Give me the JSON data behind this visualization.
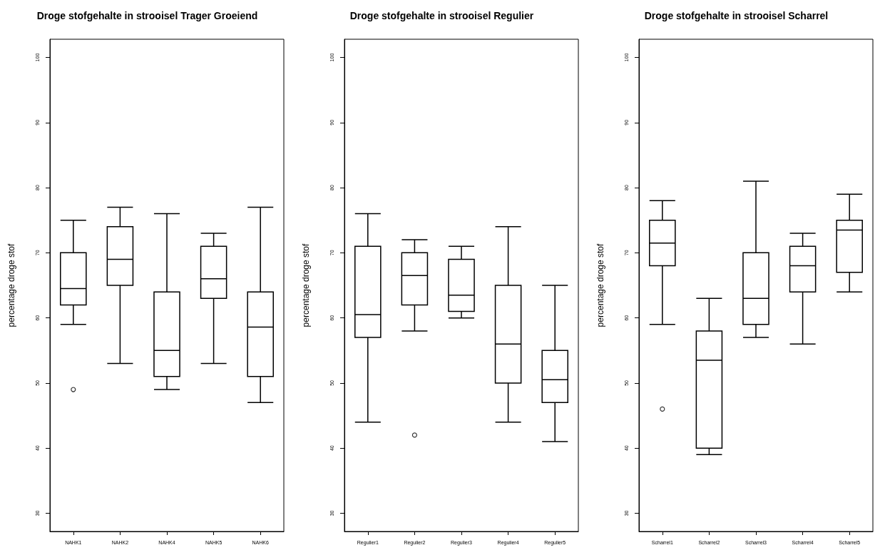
{
  "chart_data": [
    {
      "type": "box",
      "title": "Droge stofgehalte in strooisel Trager Groeiend",
      "ylabel": "percentage droge stof",
      "categories": [
        "NAHK1",
        "NAHK2",
        "NAHK4",
        "NAHK5",
        "NAHK6"
      ],
      "boxes": [
        {
          "low": 59,
          "q1": 62,
          "median": 64.5,
          "q3": 70,
          "high": 75,
          "outliers": [
            49
          ]
        },
        {
          "low": 53,
          "q1": 65,
          "median": 69,
          "q3": 74,
          "high": 77
        },
        {
          "low": 49,
          "q1": 51,
          "median": 55,
          "q3": 64,
          "high": 76
        },
        {
          "low": 53,
          "q1": 63,
          "median": 66,
          "q3": 71,
          "high": 73
        },
        {
          "low": 47,
          "q1": 51,
          "median": 58.6,
          "q3": 64,
          "high": 77
        }
      ],
      "ylim": [
        27.2,
        102.8
      ],
      "yticks": [
        30,
        40,
        50,
        60,
        70,
        80,
        90,
        100
      ],
      "grid": false
    },
    {
      "type": "box",
      "title": "Droge stofgehalte in strooisel Regulier",
      "ylabel": "percentage droge stof",
      "categories": [
        "Regulier1",
        "Regulier2",
        "Regulier3",
        "Regulier4",
        "Regulier5"
      ],
      "boxes": [
        {
          "low": 44,
          "q1": 57,
          "median": 60.5,
          "q3": 71,
          "high": 76
        },
        {
          "low": 58,
          "q1": 62,
          "median": 66.5,
          "q3": 70,
          "high": 72,
          "outliers": [
            42
          ]
        },
        {
          "low": 60,
          "q1": 61,
          "median": 63.5,
          "q3": 69,
          "high": 71
        },
        {
          "low": 44,
          "q1": 50,
          "median": 56,
          "q3": 65,
          "high": 74
        },
        {
          "low": 41,
          "q1": 47,
          "median": 50.5,
          "q3": 55,
          "high": 65
        }
      ],
      "ylim": [
        27.2,
        102.8
      ],
      "yticks": [
        30,
        40,
        50,
        60,
        70,
        80,
        90,
        100
      ],
      "grid": false
    },
    {
      "type": "box",
      "title": "Droge stofgehalte in strooisel Scharrel",
      "ylabel": "percentage droge stof",
      "categories": [
        "Scharrel1",
        "Scharrel2",
        "Scharrel3",
        "Scharrel4",
        "Scharrel5"
      ],
      "boxes": [
        {
          "low": 59,
          "q1": 68,
          "median": 71.5,
          "q3": 75,
          "high": 78,
          "outliers": [
            46
          ]
        },
        {
          "low": 39,
          "q1": 40,
          "median": 53.5,
          "q3": 58,
          "high": 63
        },
        {
          "low": 57,
          "q1": 59,
          "median": 63,
          "q3": 70,
          "high": 81
        },
        {
          "low": 56,
          "q1": 64,
          "median": 68,
          "q3": 71,
          "high": 73
        },
        {
          "low": 64,
          "q1": 67,
          "median": 73.5,
          "q3": 75,
          "high": 79
        }
      ],
      "ylim": [
        27.2,
        102.8
      ],
      "yticks": [
        30,
        40,
        50,
        60,
        70,
        80,
        90,
        100
      ],
      "grid": false
    }
  ]
}
